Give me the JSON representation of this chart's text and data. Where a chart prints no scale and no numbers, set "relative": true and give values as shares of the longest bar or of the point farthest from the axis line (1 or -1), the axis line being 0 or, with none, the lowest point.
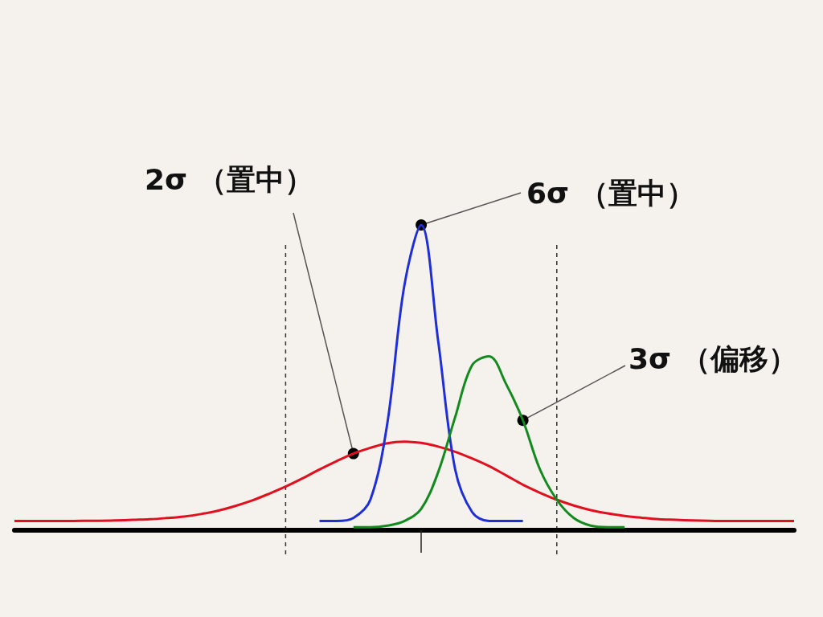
{
  "chart_data": {
    "type": "line",
    "relative": true,
    "marker": "none",
    "categories": [
      null,
      null,
      null,
      null,
      null,
      null,
      null,
      null,
      null,
      null,
      null,
      null,
      null,
      null,
      null,
      null,
      null,
      null,
      null,
      null,
      null,
      null,
      null,
      null,
      null,
      null,
      null,
      null,
      null,
      null,
      null,
      null,
      null,
      null,
      null,
      null,
      null,
      null,
      null,
      null,
      null,
      null,
      null,
      null,
      null,
      null,
      null
    ],
    "series": [
      {
        "color": "#e0101e",
        "values": [
          0.03,
          0.03,
          0.03,
          0.03,
          0.031,
          0.031,
          0.032,
          0.034,
          0.036,
          0.04,
          0.045,
          0.053,
          0.064,
          0.079,
          0.097,
          0.119,
          0.143,
          0.17,
          0.199,
          0.226,
          0.251,
          0.27,
          0.285,
          0.29,
          0.286,
          0.274,
          0.257,
          0.235,
          0.21,
          0.18,
          0.149,
          0.123,
          0.1,
          0.081,
          0.066,
          0.055,
          0.047,
          0.041,
          0.036,
          0.034,
          0.032,
          0.031,
          0.03,
          0.03,
          0.03,
          0.03,
          0.03
        ]
      },
      {
        "color": "#1f2fd8",
        "values": [
          null,
          null,
          null,
          null,
          null,
          null,
          null,
          null,
          null,
          null,
          null,
          null,
          null,
          null,
          null,
          null,
          null,
          null,
          0.03,
          0.03,
          0.04,
          0.1,
          0.35,
          0.8,
          1,
          0.62,
          0.2,
          0.06,
          0.03,
          0.03,
          0.03,
          null,
          null,
          null,
          null,
          null,
          null,
          null,
          null,
          null,
          null,
          null,
          null,
          null,
          null,
          null,
          null
        ]
      },
      {
        "color": "#138a1e",
        "values": [
          null,
          null,
          null,
          null,
          null,
          null,
          null,
          null,
          null,
          null,
          null,
          null,
          null,
          null,
          null,
          null,
          null,
          null,
          null,
          null,
          0.01,
          0.01,
          0.015,
          0.03,
          0.07,
          0.19,
          0.37,
          0.54,
          0.57,
          0.48,
          0.36,
          0.2,
          0.1,
          0.04,
          0.015,
          0.01,
          0.01,
          null,
          null,
          null,
          null,
          null,
          null,
          null,
          null,
          null,
          null
        ]
      }
    ],
    "annotations": [
      "2σ （置中）",
      "6σ （置中）",
      "3σ （偏移）"
    ]
  }
}
